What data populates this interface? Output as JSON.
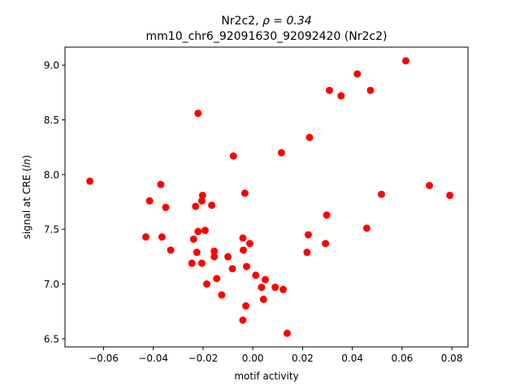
{
  "chart_data": {
    "type": "scatter",
    "title_line1_prefix": "Nr2c2, ",
    "title_line1_math": "ρ = 0.34",
    "title_line2": "mm10_chr6_92091630_92092420 (Nr2c2)",
    "xlabel": "motif activity",
    "ylabel_prefix": "signal at CRE (",
    "ylabel_math": "ln",
    "ylabel_suffix": ")",
    "xlim": [
      -0.0755,
      0.0865
    ],
    "ylim": [
      6.425,
      9.165
    ],
    "xticks": [
      -0.06,
      -0.04,
      -0.02,
      0.0,
      0.02,
      0.04,
      0.06,
      0.08
    ],
    "xtick_labels": [
      "−0.06",
      "−0.04",
      "−0.02",
      "0.00",
      "0.02",
      "0.04",
      "0.06",
      "0.08"
    ],
    "yticks": [
      6.5,
      7.0,
      7.5,
      8.0,
      8.5,
      9.0
    ],
    "ytick_labels": [
      "6.5",
      "7.0",
      "7.5",
      "8.0",
      "8.5",
      "9.0"
    ],
    "grid": false,
    "marker_color": "#ff0000",
    "points": [
      {
        "x": -0.0655,
        "y": 7.94
      },
      {
        "x": -0.043,
        "y": 7.43
      },
      {
        "x": -0.0415,
        "y": 7.76
      },
      {
        "x": -0.037,
        "y": 7.91
      },
      {
        "x": -0.0365,
        "y": 7.43
      },
      {
        "x": -0.035,
        "y": 7.7
      },
      {
        "x": -0.033,
        "y": 7.31
      },
      {
        "x": -0.0245,
        "y": 7.19
      },
      {
        "x": -0.0238,
        "y": 7.41
      },
      {
        "x": -0.023,
        "y": 7.71
      },
      {
        "x": -0.0225,
        "y": 7.29
      },
      {
        "x": -0.022,
        "y": 7.48
      },
      {
        "x": -0.022,
        "y": 8.56
      },
      {
        "x": -0.0205,
        "y": 7.19
      },
      {
        "x": -0.0205,
        "y": 7.76
      },
      {
        "x": -0.0202,
        "y": 7.81
      },
      {
        "x": -0.0192,
        "y": 7.49
      },
      {
        "x": -0.0185,
        "y": 7.0
      },
      {
        "x": -0.0165,
        "y": 7.72
      },
      {
        "x": -0.0155,
        "y": 7.25
      },
      {
        "x": -0.0155,
        "y": 7.3
      },
      {
        "x": -0.0145,
        "y": 7.05
      },
      {
        "x": -0.0125,
        "y": 6.9
      },
      {
        "x": -0.01,
        "y": 7.25
      },
      {
        "x": -0.0082,
        "y": 7.14
      },
      {
        "x": -0.0078,
        "y": 8.17
      },
      {
        "x": -0.004,
        "y": 7.42
      },
      {
        "x": -0.0038,
        "y": 7.31
      },
      {
        "x": -0.004,
        "y": 6.67
      },
      {
        "x": -0.0032,
        "y": 7.83
      },
      {
        "x": -0.0028,
        "y": 6.8
      },
      {
        "x": -0.0025,
        "y": 7.16
      },
      {
        "x": -0.0012,
        "y": 7.37
      },
      {
        "x": 0.0012,
        "y": 7.08
      },
      {
        "x": 0.0035,
        "y": 6.97
      },
      {
        "x": 0.0043,
        "y": 6.86
      },
      {
        "x": 0.005,
        "y": 7.04
      },
      {
        "x": 0.009,
        "y": 6.97
      },
      {
        "x": 0.0115,
        "y": 8.2
      },
      {
        "x": 0.0122,
        "y": 6.95
      },
      {
        "x": 0.0138,
        "y": 6.55
      },
      {
        "x": 0.0218,
        "y": 7.29
      },
      {
        "x": 0.0223,
        "y": 7.45
      },
      {
        "x": 0.0228,
        "y": 8.34
      },
      {
        "x": 0.0292,
        "y": 7.37
      },
      {
        "x": 0.0297,
        "y": 7.63
      },
      {
        "x": 0.0308,
        "y": 8.77
      },
      {
        "x": 0.0355,
        "y": 8.72
      },
      {
        "x": 0.042,
        "y": 8.92
      },
      {
        "x": 0.0458,
        "y": 7.51
      },
      {
        "x": 0.0473,
        "y": 8.77
      },
      {
        "x": 0.0517,
        "y": 7.82
      },
      {
        "x": 0.0615,
        "y": 9.04
      },
      {
        "x": 0.071,
        "y": 7.9
      },
      {
        "x": 0.0792,
        "y": 7.81
      }
    ]
  }
}
